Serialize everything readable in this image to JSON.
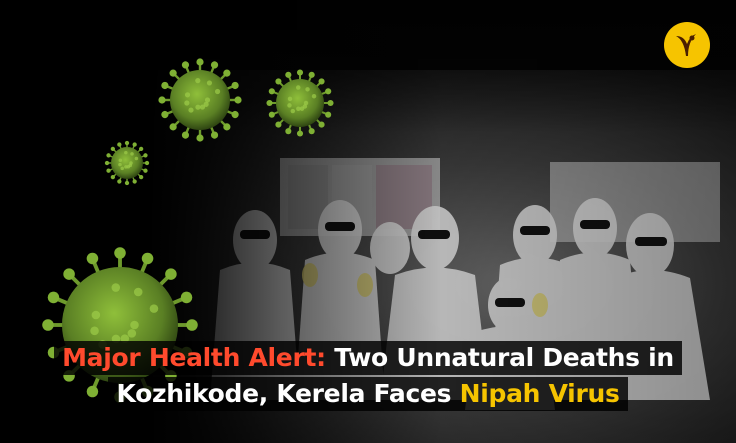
{
  "headline": {
    "line1_highlight": "Major Health Alert:",
    "line1_rest": " Two Unnatural Deaths in",
    "line2_rest": "Kozhikode, Kerela Faces ",
    "line2_highlight": "Nipah Virus"
  },
  "colors": {
    "highlight_red": "#ff4a2d",
    "highlight_gold": "#f6c400",
    "virus_green": "#6e9a2c"
  },
  "logo": {
    "icon": "brand-logo-icon"
  }
}
